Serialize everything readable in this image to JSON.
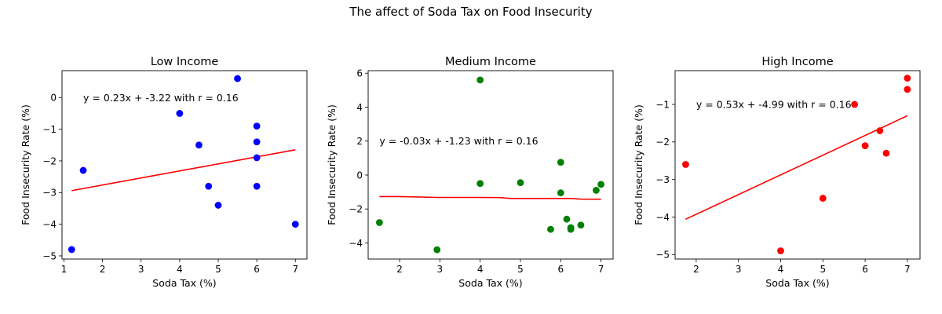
{
  "suptitle": "The affect of Soda Tax on Food Insecurity",
  "chart_data": [
    {
      "type": "scatter",
      "title": "Low Income",
      "xlabel": "Soda Tax (%)",
      "ylabel": "Food Insecurity Rate (%)",
      "xlim": [
        0.95,
        7.3
      ],
      "ylim": [
        -5.1,
        0.85
      ],
      "xticks": [
        1,
        2,
        3,
        4,
        5,
        6,
        7
      ],
      "yticks": [
        -5,
        -4,
        -3,
        -2,
        -1,
        0
      ],
      "point_color": "#0000ff",
      "line_color": "#ff0000",
      "annotation": "y = 0.23x + -3.22 with r = 0.16",
      "annotation_pos": {
        "x": 1.5,
        "y": 0.0
      },
      "points": [
        {
          "x": 1.2,
          "y": -4.8
        },
        {
          "x": 1.5,
          "y": -2.3
        },
        {
          "x": 4.0,
          "y": -0.5
        },
        {
          "x": 4.5,
          "y": -1.5
        },
        {
          "x": 4.75,
          "y": -2.8
        },
        {
          "x": 5.0,
          "y": -3.4
        },
        {
          "x": 5.5,
          "y": 0.6
        },
        {
          "x": 6.0,
          "y": -0.9
        },
        {
          "x": 6.0,
          "y": -1.4
        },
        {
          "x": 6.0,
          "y": -1.9
        },
        {
          "x": 6.0,
          "y": -2.8
        },
        {
          "x": 7.0,
          "y": -4.0
        }
      ],
      "fit_line": [
        {
          "x": 1.2,
          "y": -2.94
        },
        {
          "x": 7.0,
          "y": -1.65
        }
      ]
    },
    {
      "type": "scatter",
      "title": "Medium Income",
      "xlabel": "Soda Tax (%)",
      "ylabel": "Food Insecurity Rate (%)",
      "xlim": [
        1.22,
        7.3
      ],
      "ylim": [
        -4.95,
        6.15
      ],
      "xticks": [
        2,
        3,
        4,
        5,
        6,
        7
      ],
      "yticks": [
        -4,
        -2,
        0,
        2,
        4,
        6
      ],
      "point_color": "#008000",
      "line_color": "#ff0000",
      "annotation": "y = -0.03x + -1.23 with r = 0.16",
      "annotation_pos": {
        "x": 1.5,
        "y": 2.0
      },
      "points": [
        {
          "x": 1.5,
          "y": -2.8
        },
        {
          "x": 2.93,
          "y": -4.4
        },
        {
          "x": 4.0,
          "y": 5.6
        },
        {
          "x": 4.0,
          "y": -0.5
        },
        {
          "x": 5.0,
          "y": -0.45
        },
        {
          "x": 5.75,
          "y": -3.2
        },
        {
          "x": 6.0,
          "y": 0.75
        },
        {
          "x": 6.0,
          "y": -1.05
        },
        {
          "x": 6.15,
          "y": -2.6
        },
        {
          "x": 6.25,
          "y": -3.1
        },
        {
          "x": 6.25,
          "y": -3.2
        },
        {
          "x": 6.5,
          "y": -2.95
        },
        {
          "x": 6.88,
          "y": -0.9
        },
        {
          "x": 7.0,
          "y": -0.55
        }
      ],
      "fit_line": [
        {
          "x": 1.5,
          "y": -1.27
        },
        {
          "x": 2.0,
          "y": -1.27
        },
        {
          "x": 2.93,
          "y": -1.32
        },
        {
          "x": 4.0,
          "y": -1.32
        },
        {
          "x": 4.5,
          "y": -1.33
        },
        {
          "x": 4.75,
          "y": -1.38
        },
        {
          "x": 5.0,
          "y": -1.38
        },
        {
          "x": 6.0,
          "y": -1.38
        },
        {
          "x": 6.25,
          "y": -1.38
        },
        {
          "x": 6.5,
          "y": -1.42
        },
        {
          "x": 7.0,
          "y": -1.43
        }
      ]
    },
    {
      "type": "scatter",
      "title": "High Income",
      "xlabel": "Soda Tax (%)",
      "ylabel": "Food Insecurity Rate (%)",
      "xlim": [
        1.5,
        7.3
      ],
      "ylim": [
        -5.12,
        -0.1
      ],
      "xticks": [
        2,
        3,
        4,
        5,
        6,
        7
      ],
      "yticks": [
        -5,
        -4,
        -3,
        -2,
        -1
      ],
      "point_color": "#ff0000",
      "line_color": "#ff0000",
      "annotation": "y = 0.53x + -4.99 with r = 0.16",
      "annotation_pos": {
        "x": 2.0,
        "y": -1.0
      },
      "points": [
        {
          "x": 1.75,
          "y": -2.6
        },
        {
          "x": 4.0,
          "y": -4.9
        },
        {
          "x": 5.0,
          "y": -3.5
        },
        {
          "x": 5.75,
          "y": -1.0
        },
        {
          "x": 6.0,
          "y": -2.1
        },
        {
          "x": 6.35,
          "y": -1.7
        },
        {
          "x": 6.5,
          "y": -2.3
        },
        {
          "x": 7.0,
          "y": -0.3
        },
        {
          "x": 7.0,
          "y": -0.6
        }
      ],
      "fit_line": [
        {
          "x": 1.75,
          "y": -4.06
        },
        {
          "x": 7.0,
          "y": -1.3
        }
      ]
    }
  ]
}
